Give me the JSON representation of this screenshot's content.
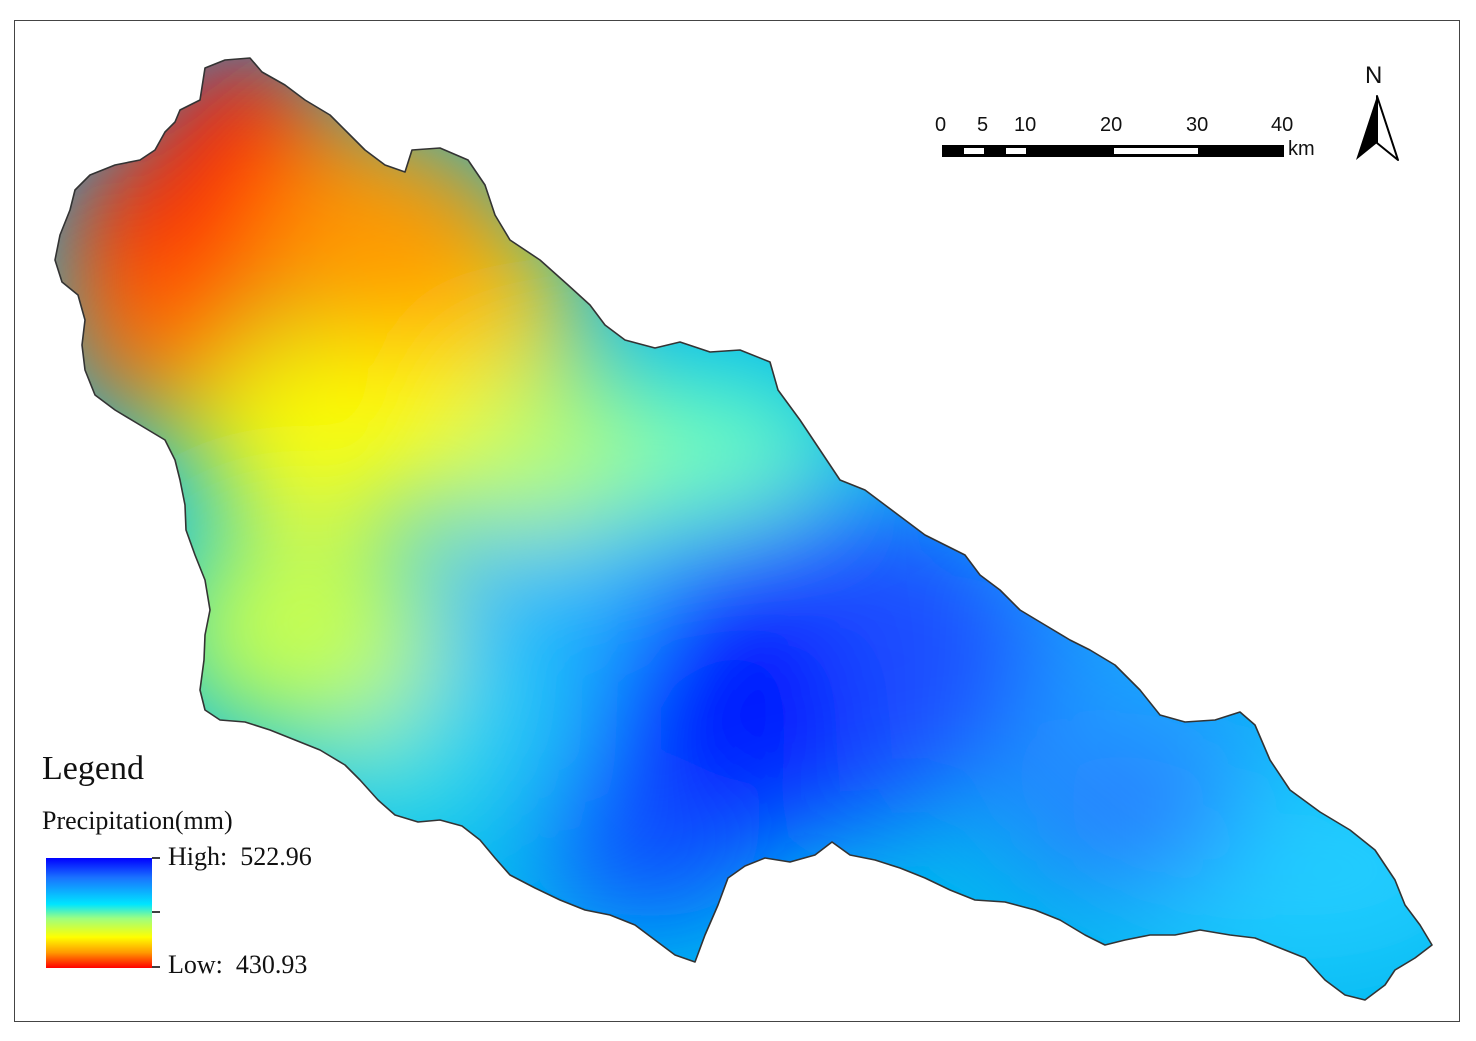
{
  "legend": {
    "title": "Legend",
    "field": "Precipitation(mm)",
    "high_label": "High:",
    "high_value": "522.96",
    "low_label": "Low:",
    "low_value": "430.93",
    "colors": [
      "#0000ff",
      "#1a73ff",
      "#00e5ff",
      "#9dff80",
      "#ffff00",
      "#ff9900",
      "#ff0000"
    ]
  },
  "scale_bar": {
    "ticks": [
      "0",
      "5",
      "10",
      "20",
      "30",
      "40"
    ],
    "unit": "km"
  },
  "north_arrow": {
    "letter": "N",
    "icon": "north-arrow-icon"
  }
}
